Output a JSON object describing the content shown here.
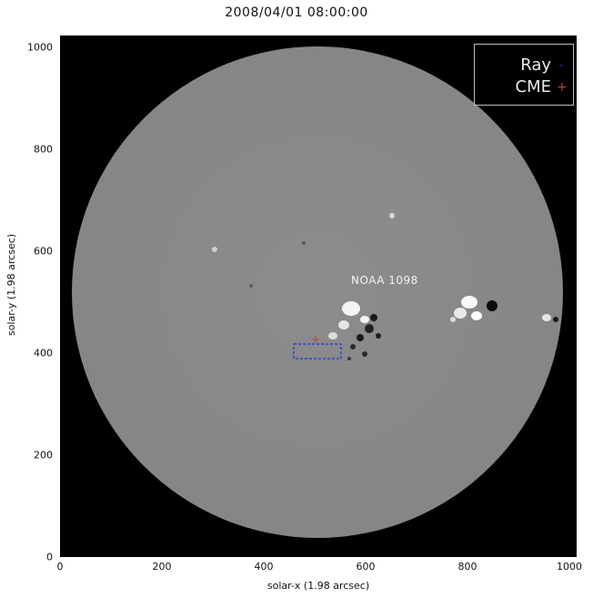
{
  "title": "2008/04/01 08:00:00",
  "legend": {
    "items": [
      {
        "label": "Ray",
        "marker": "-",
        "color": "#1f33c7"
      },
      {
        "label": "CME",
        "marker": "+",
        "color": "#c43a2a"
      }
    ]
  },
  "annotation": {
    "text": "NOAA 1098"
  },
  "axes": {
    "xlabel": "solar-x (1.98 arcsec)",
    "ylabel": "solar-y (1.98 arcsec)",
    "xticks": [
      "0",
      "200",
      "400",
      "600",
      "800",
      "1000"
    ],
    "yticks": [
      "0",
      "200",
      "400",
      "600",
      "800",
      "1000"
    ],
    "xlim": [
      0,
      1024
    ],
    "ylim": [
      0,
      1024
    ]
  },
  "colors": {
    "background": "#000000",
    "sun_disk": "#878787"
  }
}
